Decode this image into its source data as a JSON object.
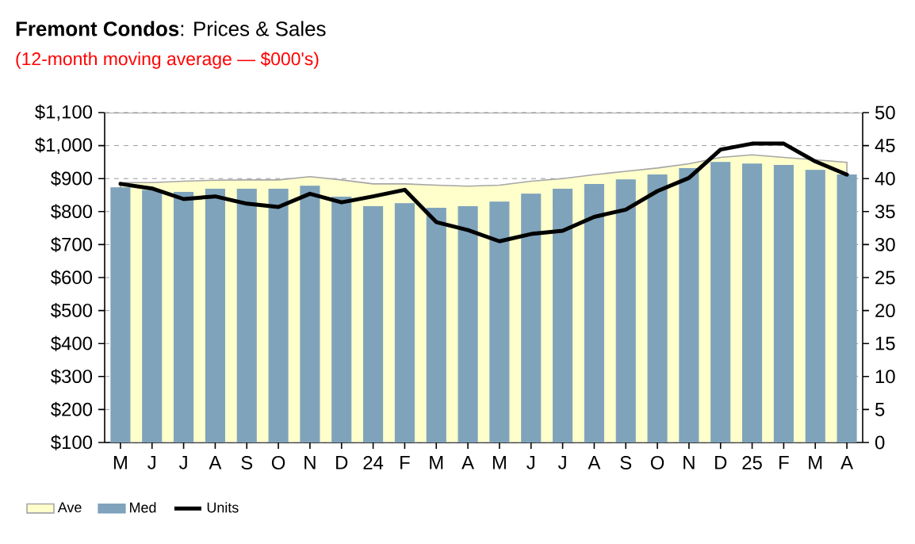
{
  "chart_data": {
    "type": "bar",
    "title": "**Fremont Condos**: Prices & Sales",
    "subtitle": "(12-month moving average — $000's)",
    "categories": [
      "M",
      "J",
      "J",
      "A",
      "S",
      "O",
      "N",
      "D",
      "24",
      "F",
      "M",
      "A",
      "M",
      "J",
      "J",
      "A",
      "S",
      "O",
      "N",
      "D",
      "25",
      "F",
      "M",
      "A"
    ],
    "series": [
      {
        "name": "Ave",
        "type": "area",
        "color": "#ffffcc",
        "values": [
          888,
          888,
          892,
          895,
          896,
          896,
          906,
          896,
          884,
          884,
          880,
          877,
          880,
          892,
          900,
          912,
          922,
          932,
          945,
          964,
          972,
          964,
          957,
          949
        ]
      },
      {
        "name": "Med",
        "color": "#7fa3bb",
        "values": [
          872,
          864,
          858,
          868,
          868,
          868,
          877,
          844,
          815,
          824,
          810,
          815,
          829,
          853,
          868,
          882,
          896,
          911,
          930,
          949,
          944,
          940,
          925,
          911
        ]
      },
      {
        "name": "Units",
        "type": "line",
        "axis": "y2",
        "color": "#000000",
        "values": [
          39.2,
          38.5,
          36.9,
          37.3,
          36.2,
          35.7,
          37.7,
          36.4,
          37.3,
          38.3,
          33.4,
          32.2,
          30.5,
          31.6,
          32.1,
          34.2,
          35.3,
          38.1,
          40.1,
          44.4,
          45.3,
          45.3,
          42.6,
          40.6
        ]
      }
    ],
    "ylim": [
      100,
      1100
    ],
    "yticks": [
      {
        "value": 100,
        "label": "$100"
      },
      {
        "value": 200,
        "label": "$200"
      },
      {
        "value": 300,
        "label": "$300"
      },
      {
        "value": 400,
        "label": "$400"
      },
      {
        "value": 500,
        "label": "$500"
      },
      {
        "value": 600,
        "label": "$600"
      },
      {
        "value": 700,
        "label": "$700"
      },
      {
        "value": 800,
        "label": "$800"
      },
      {
        "value": 900,
        "label": "$900"
      },
      {
        "value": 1000,
        "label": "$1,000"
      },
      {
        "value": 1100,
        "label": "$1,100"
      }
    ],
    "y2lim": [
      0,
      50
    ],
    "y2ticks": [
      0,
      5,
      10,
      15,
      20,
      25,
      30,
      35,
      40,
      45,
      50
    ],
    "grid": "y",
    "legend": "bottom"
  }
}
